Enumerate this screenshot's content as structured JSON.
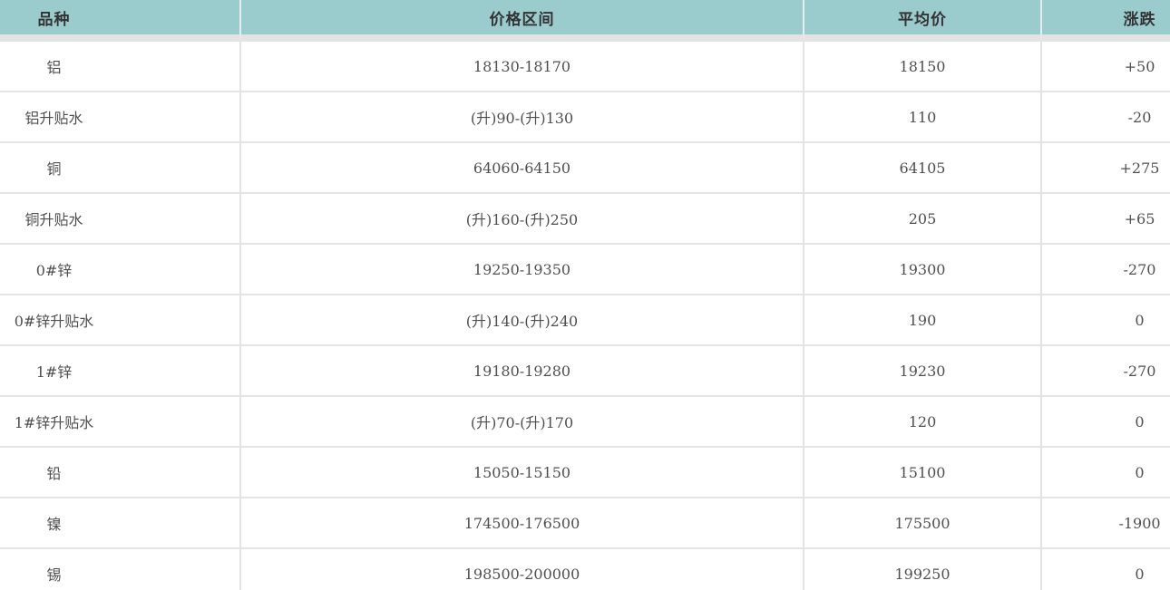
{
  "colors": {
    "header_bg": "#9bcccd",
    "header_text": "#333333",
    "text": "#4f4f4f",
    "border": "#e3e3e3",
    "row_bg": "#ffffff"
  },
  "table": {
    "columns": [
      {
        "key": "variety",
        "label": "品种"
      },
      {
        "key": "price_range",
        "label": "价格区间"
      },
      {
        "key": "avg_price",
        "label": "平均价"
      },
      {
        "key": "change",
        "label": "涨跌"
      }
    ],
    "rows": [
      {
        "variety": "铝",
        "price_range": "18130-18170",
        "avg_price": "18150",
        "change": "+50"
      },
      {
        "variety": "铝升贴水",
        "price_range": "(升)90-(升)130",
        "avg_price": "110",
        "change": "-20"
      },
      {
        "variety": "铜",
        "price_range": "64060-64150",
        "avg_price": "64105",
        "change": "+275"
      },
      {
        "variety": "铜升贴水",
        "price_range": "(升)160-(升)250",
        "avg_price": "205",
        "change": "+65"
      },
      {
        "variety": "0#锌",
        "price_range": "19250-19350",
        "avg_price": "19300",
        "change": "-270"
      },
      {
        "variety": "0#锌升贴水",
        "price_range": "(升)140-(升)240",
        "avg_price": "190",
        "change": "0"
      },
      {
        "variety": "1#锌",
        "price_range": "19180-19280",
        "avg_price": "19230",
        "change": "-270"
      },
      {
        "variety": "1#锌升贴水",
        "price_range": "(升)70-(升)170",
        "avg_price": "120",
        "change": "0"
      },
      {
        "variety": "铅",
        "price_range": "15050-15150",
        "avg_price": "15100",
        "change": "0"
      },
      {
        "variety": "镍",
        "price_range": "174500-176500",
        "avg_price": "175500",
        "change": "-1900"
      },
      {
        "variety": "锡",
        "price_range": "198500-200000",
        "avg_price": "199250",
        "change": "0"
      }
    ]
  }
}
